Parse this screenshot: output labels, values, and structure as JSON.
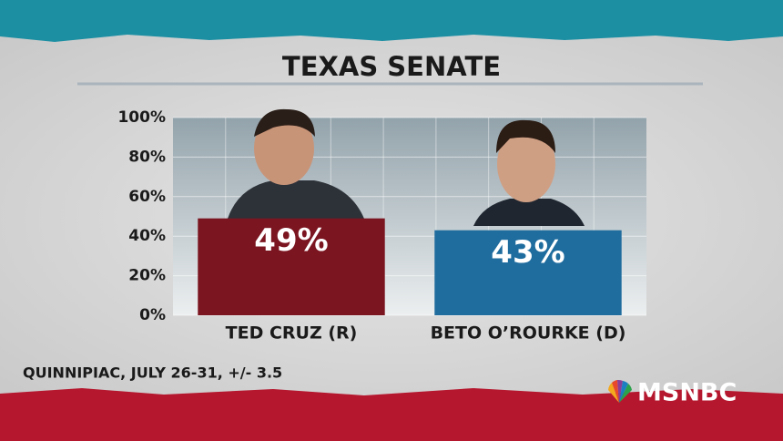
{
  "chart_data": {
    "type": "bar",
    "title": "TEXAS SENATE",
    "categories": [
      "TED CRUZ (R)",
      "BETO O’ROURKE (D)"
    ],
    "values": [
      49,
      43
    ],
    "value_labels": [
      "49%",
      "43%"
    ],
    "colors": [
      "#7b1520",
      "#1f6c9e"
    ],
    "ylim": [
      0,
      100
    ],
    "yticks": [
      {
        "value": 0,
        "label": "0%"
      },
      {
        "value": 20,
        "label": "20%"
      },
      {
        "value": 40,
        "label": "40%"
      },
      {
        "value": 60,
        "label": "60%"
      },
      {
        "value": 80,
        "label": "80%"
      },
      {
        "value": 100,
        "label": "100%"
      }
    ],
    "grid": true,
    "source": "QUINNIPIAC, JULY 26-31, +/- 3.5",
    "logo": "MSNBC"
  }
}
